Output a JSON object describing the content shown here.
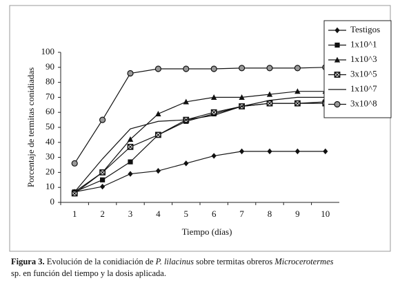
{
  "chart_data": {
    "type": "line",
    "y_label": "Porcentaje de termitas conidiadas",
    "x_label": "Tiempo (días)",
    "categories": [
      "1",
      "2",
      "3",
      "4",
      "5",
      "6",
      "7",
      "8",
      "9",
      "10"
    ],
    "ylim": [
      0,
      100
    ],
    "yticks": [
      0,
      10,
      20,
      30,
      40,
      50,
      60,
      70,
      80,
      90,
      100
    ],
    "series": [
      {
        "name": "Testigos",
        "color": "#111111",
        "marker": "diamond",
        "values": [
          7,
          10.5,
          19,
          21,
          26,
          31,
          34,
          34,
          34,
          34
        ]
      },
      {
        "name": "1x10^1",
        "color": "#111111",
        "marker": "square",
        "values": [
          7,
          15,
          27,
          45,
          54,
          59,
          64,
          66,
          66,
          67
        ]
      },
      {
        "name": "1x10^3",
        "color": "#111111",
        "marker": "triangle",
        "values": [
          7,
          20,
          42,
          59,
          67,
          70,
          70,
          72,
          74,
          74
        ]
      },
      {
        "name": "3x10^5",
        "color": "#111111",
        "marker": "xsquare",
        "values": [
          6,
          20,
          37,
          45,
          55,
          60,
          64,
          66,
          66,
          66
        ]
      },
      {
        "name": "1x10^7",
        "color": "#111111",
        "marker": "none",
        "values": [
          7,
          29,
          49,
          54,
          55,
          58,
          64,
          68,
          70,
          70
        ]
      },
      {
        "name": "3x10^8",
        "color": "#111111",
        "marker": "circle",
        "values": [
          26,
          55,
          86,
          89,
          89,
          89,
          89.5,
          89.5,
          89.5,
          90
        ]
      }
    ]
  },
  "caption": {
    "label": "Figura 3.",
    "line1": [
      " Evolución de la conidiación de ",
      "P. lilacinus",
      " sobre termitas obreros ",
      "Microcerotermes"
    ],
    "line2": "sp. en función del tiempo y la dosis aplicada."
  }
}
